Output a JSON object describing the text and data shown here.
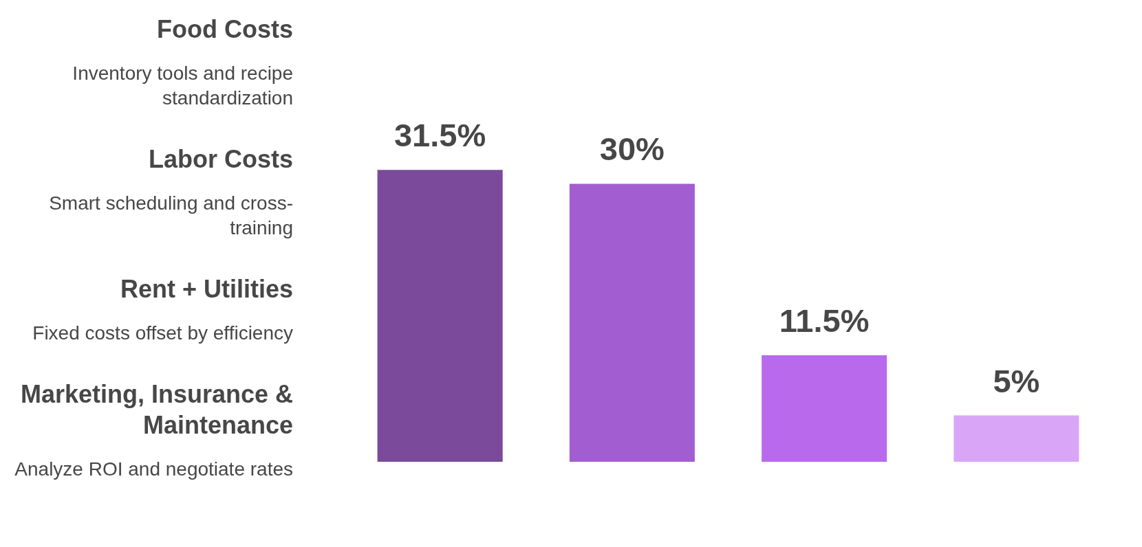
{
  "chart_data": {
    "type": "bar",
    "categories": [
      null,
      null,
      null,
      null
    ],
    "values": [
      31.5,
      30,
      11.5,
      5
    ],
    "colors": [
      "#7b4a9a",
      "#a25ed0",
      "#b96aec",
      "#d9a6f7"
    ],
    "value_labels": [
      "31.5%",
      "30%",
      "11.5%",
      "5%"
    ],
    "annotations": [
      "Food Costs",
      "Inventory tools and recipe standardization",
      "Labor Costs",
      "Smart scheduling and cross-training",
      "Rent + Utilities",
      "Fixed costs offset by efficiency",
      "Marketing, Insurance & Maintenance",
      "Analyze ROI and negotiate rates"
    ],
    "tick_labels": false
  }
}
